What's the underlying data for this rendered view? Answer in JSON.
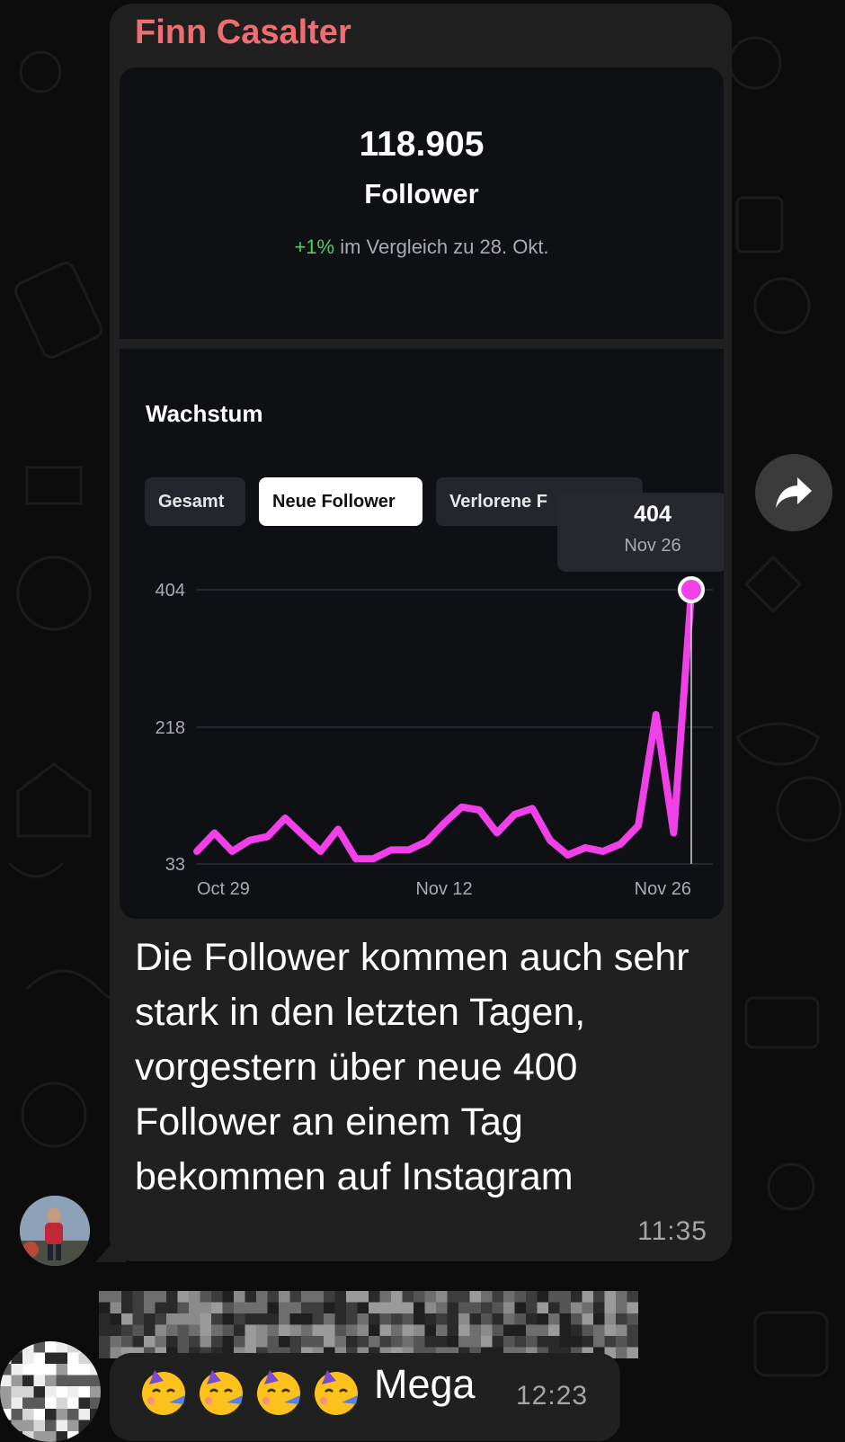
{
  "message": {
    "sender": "Finn Casalter",
    "sender_color": "#ee6e71",
    "text": "Die Follower kommen auch sehr stark in den letzten Tagen, vorgestern über neue 400 Follower an einem Tag bekommen auf Instagram",
    "time": "11:35"
  },
  "stats": {
    "count": "118.905",
    "label": "Follower",
    "delta": "+1%",
    "compare_text": " im Vergleich zu 28. Okt."
  },
  "growth": {
    "title": "Wachstum",
    "tabs": [
      "Gesamt",
      "Neue Follower",
      "Verlorene F"
    ],
    "active_tab": "Neue Follower",
    "tooltip": {
      "value": "404",
      "date": "Nov 26"
    }
  },
  "chart_data": {
    "type": "line",
    "title": "Wachstum",
    "x_ticks": [
      "Oct 29",
      "Nov 12",
      "Nov 26"
    ],
    "y_ticks": [
      404,
      218,
      33
    ],
    "ylim": [
      33,
      404
    ],
    "grid": "horizontal",
    "series": [
      {
        "color": "#f040e8",
        "x": [
          "Oct 29",
          "Oct 30",
          "Oct 31",
          "Nov 1",
          "Nov 2",
          "Nov 3",
          "Nov 4",
          "Nov 5",
          "Nov 6",
          "Nov 7",
          "Nov 8",
          "Nov 9",
          "Nov 10",
          "Nov 11",
          "Nov 12",
          "Nov 13",
          "Nov 14",
          "Nov 15",
          "Nov 16",
          "Nov 17",
          "Nov 18",
          "Nov 19",
          "Nov 20",
          "Nov 21",
          "Nov 22",
          "Nov 23",
          "Nov 24",
          "Nov 25",
          "Nov 26"
        ],
        "values": [
          50,
          75,
          50,
          65,
          70,
          95,
          72,
          50,
          80,
          40,
          40,
          52,
          52,
          63,
          88,
          110,
          106,
          75,
          100,
          108,
          65,
          45,
          55,
          50,
          60,
          85,
          235,
          75,
          400
        ]
      }
    ],
    "highlight": {
      "x": "Nov 26",
      "value": 404
    }
  },
  "reply": {
    "emoji": [
      "🥳",
      "🥳",
      "🥳",
      "🥳"
    ],
    "text": "Mega",
    "time": "12:23"
  },
  "icons": {
    "share": "share-arrow-icon",
    "emoji": "partying-face-icon"
  }
}
